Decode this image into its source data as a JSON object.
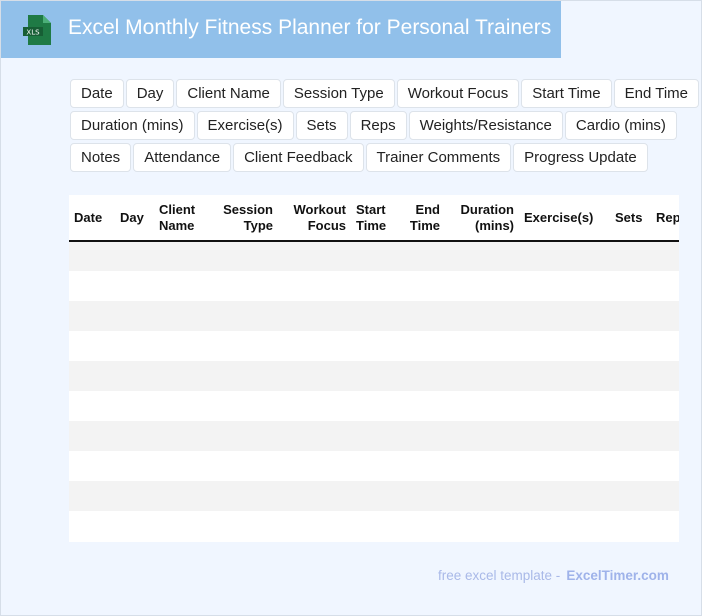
{
  "header": {
    "title": "Excel Monthly Fitness Planner for Personal Trainers",
    "icon": "xls-file-icon",
    "icon_label": "XLS"
  },
  "tags": [
    "Date",
    "Day",
    "Client Name",
    "Session Type",
    "Workout Focus",
    "Start Time",
    "End Time",
    "Duration (mins)",
    "Exercise(s)",
    "Sets",
    "Reps",
    "Weights/Resistance",
    "Cardio (mins)",
    "Notes",
    "Attendance",
    "Client Feedback",
    "Trainer Comments",
    "Progress Update"
  ],
  "table": {
    "columns": [
      [
        "Date",
        ""
      ],
      [
        "Day",
        ""
      ],
      [
        "Client",
        "Name"
      ],
      [
        "Session",
        "Type"
      ],
      [
        "Workout",
        "Focus"
      ],
      [
        "Start",
        "Time"
      ],
      [
        "End",
        "Time"
      ],
      [
        "Duration",
        "(mins)"
      ],
      [
        "Exercise(s)",
        ""
      ],
      [
        "Sets",
        ""
      ],
      [
        "Reps",
        ""
      ]
    ],
    "row_count": 10
  },
  "footer": {
    "text": "free excel template -",
    "brand": "ExcelTimer.com"
  },
  "colors": {
    "header_bg": "#91c0ea",
    "page_bg": "#f0f6ff",
    "icon_green": "#1f7a45"
  }
}
